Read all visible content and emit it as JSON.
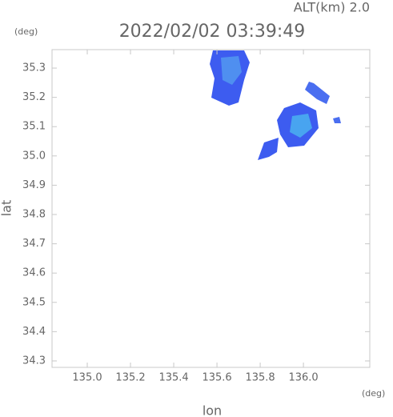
{
  "chart_data": {
    "type": "map",
    "title": "2022/02/02 03:39:49",
    "subtitle": "ALT(km) 2.0",
    "y_unit": "(deg)",
    "x_unit": "(deg)",
    "xlabel": "lon",
    "ylabel": "lat",
    "xlim": [
      134.837,
      136.307
    ],
    "ylim": [
      34.278,
      35.363
    ],
    "xticks": [
      {
        "value": 135.0,
        "label": "135.0"
      },
      135.2,
      135.4,
      135.6,
      135.8,
      {
        "value": 136.0,
        "label": "136.0"
      }
    ],
    "yticks": [
      34.3,
      34.4,
      34.5,
      34.6,
      34.7,
      34.8,
      34.9,
      {
        "value": 35.0,
        "label": "35.0"
      },
      35.1,
      35.2,
      35.3
    ],
    "frame_color": "#c8c8c8"
  }
}
